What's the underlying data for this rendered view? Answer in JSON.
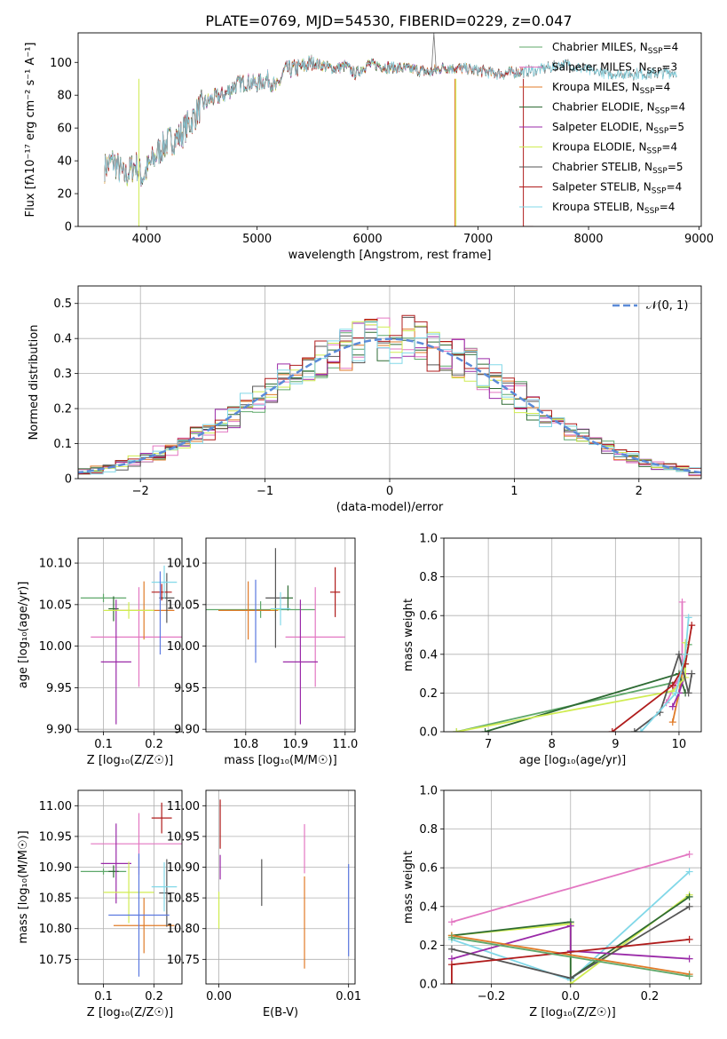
{
  "figure": {
    "title": "PLATE=0769, MJD=54530, FIBERID=0229, z=0.047"
  },
  "colors": {
    "chabrier_miles": "#5fa86a",
    "salpeter_miles": "#e377c2",
    "kroupa_miles": "#e07b28",
    "chabrier_elodie": "#2e6b34",
    "salpeter_elodie": "#9a2aa8",
    "kroupa_elodie": "#d0ec52",
    "chabrier_stelib": "#555555",
    "salpeter_stelib": "#b01c1c",
    "kroupa_stelib": "#82d8e8",
    "gaussian": "#5b8bd8",
    "blue_extra": "#5b78e0",
    "grid": "#b0b0b0"
  },
  "chart_data": [
    {
      "id": "spectrum",
      "type": "line",
      "xlabel": "wavelength [Angstrom, rest frame]",
      "ylabel": "Flux [fλ10⁻¹⁷ erg cm⁻² s⁻¹ A⁻¹]",
      "xlim": [
        3380,
        9020
      ],
      "ylim": [
        0,
        118
      ],
      "xticks": [
        4000,
        5000,
        6000,
        7000,
        8000,
        9000
      ],
      "yticks": [
        0,
        20,
        40,
        60,
        80,
        100
      ],
      "legend": [
        {
          "label": "Chabrier MILES, N",
          "sub": "SSP",
          "tail": "=4",
          "color": "chabrier_miles"
        },
        {
          "label": "Salpeter MILES, N",
          "sub": "SSP",
          "tail": "=3",
          "color": "salpeter_miles"
        },
        {
          "label": "Kroupa MILES, N",
          "sub": "SSP",
          "tail": "=4",
          "color": "kroupa_miles"
        },
        {
          "label": "Chabrier ELODIE, N",
          "sub": "SSP",
          "tail": "=4",
          "color": "chabrier_elodie"
        },
        {
          "label": "Salpeter ELODIE, N",
          "sub": "SSP",
          "tail": "=5",
          "color": "salpeter_elodie"
        },
        {
          "label": "Kroupa ELODIE, N",
          "sub": "SSP",
          "tail": "=4",
          "color": "kroupa_elodie"
        },
        {
          "label": "Chabrier STELIB, N",
          "sub": "SSP",
          "tail": "=5",
          "color": "chabrier_stelib"
        },
        {
          "label": "Salpeter STELIB, N",
          "sub": "SSP",
          "tail": "=4",
          "color": "salpeter_stelib"
        },
        {
          "label": "Kroupa STELIB, N",
          "sub": "SSP",
          "tail": "=4",
          "color": "kroupa_stelib"
        }
      ],
      "legend_position": "upper-right",
      "spectrum_anchors": [
        [
          3620,
          36
        ],
        [
          3700,
          40
        ],
        [
          3800,
          30
        ],
        [
          3900,
          38
        ],
        [
          3960,
          30
        ],
        [
          4100,
          45
        ],
        [
          4200,
          52
        ],
        [
          4300,
          55
        ],
        [
          4400,
          64
        ],
        [
          4500,
          74
        ],
        [
          4600,
          78
        ],
        [
          4700,
          80
        ],
        [
          4800,
          86
        ],
        [
          4900,
          88
        ],
        [
          5000,
          87
        ],
        [
          5100,
          90
        ],
        [
          5175,
          84
        ],
        [
          5250,
          95
        ],
        [
          5400,
          97
        ],
        [
          5500,
          100
        ],
        [
          5700,
          96
        ],
        [
          5800,
          98
        ],
        [
          5890,
          93
        ],
        [
          6000,
          99
        ],
        [
          6200,
          97
        ],
        [
          6400,
          96
        ],
        [
          6560,
          94
        ],
        [
          6700,
          97
        ],
        [
          6900,
          96
        ],
        [
          7200,
          93
        ],
        [
          7500,
          95
        ],
        [
          7800,
          99
        ],
        [
          8000,
          95
        ],
        [
          8200,
          93
        ],
        [
          8500,
          93
        ],
        [
          8800,
          94
        ]
      ],
      "dropouts": [
        {
          "color": "kroupa_elodie",
          "x": 3930,
          "x_end": 3930
        },
        {
          "color": "salpeter_stelib",
          "x": 7410,
          "x_end": 7500
        },
        {
          "color": "kroupa_elodie",
          "x": 6800,
          "x_end": 6800
        },
        {
          "color": "kroupa_miles",
          "x": 6790,
          "x_end": 6790
        }
      ],
      "spike": {
        "x": 6600,
        "y": 118
      }
    },
    {
      "id": "residuals",
      "type": "histogram",
      "xlabel": "(data-model)/error",
      "ylabel": "Normed distribution",
      "xlim": [
        -2.5,
        2.5
      ],
      "ylim": [
        0,
        0.55
      ],
      "xticks": [
        -2,
        -1,
        0,
        1,
        2
      ],
      "yticks": [
        0.0,
        0.1,
        0.2,
        0.3,
        0.4,
        0.5
      ],
      "legend": [
        {
          "label": "𝒩(0, 1)",
          "color": "gaussian",
          "style": "dashed"
        }
      ],
      "legend_position": "upper-right",
      "bin_width": 0.1
    },
    {
      "id": "age_vs_Z",
      "type": "errorbar",
      "xlabel": "Z [log₁₀(Z/Z☉)]",
      "ylabel": "age  [log₁₀(age/yr)]",
      "xlim": [
        0.05,
        0.255
      ],
      "ylim": [
        9.897,
        10.13
      ],
      "xticks": [
        0.1,
        0.2
      ],
      "yticks": [
        9.9,
        9.95,
        10.0,
        10.05,
        10.1
      ],
      "points": [
        {
          "color": "chabrier_miles",
          "x": 0.1,
          "xerr": 0.045,
          "y": 10.058,
          "yerr": 0.005
        },
        {
          "color": "salpeter_miles",
          "x": 0.17,
          "xerr": 0.095,
          "y": 10.011,
          "yerr": 0.06
        },
        {
          "color": "kroupa_miles",
          "x": 0.18,
          "xerr": 0.06,
          "y": 10.043,
          "yerr": 0.035
        },
        {
          "color": "chabrier_elodie",
          "x": 0.12,
          "xerr": 0.01,
          "y": 10.045,
          "yerr": 0.015
        },
        {
          "color": "salpeter_elodie",
          "x": 0.125,
          "xerr": 0.03,
          "y": 9.981,
          "yerr": 0.075
        },
        {
          "color": "kroupa_elodie",
          "x": 0.15,
          "xerr": 0.05,
          "y": 10.043,
          "yerr": 0.01
        },
        {
          "color": "chabrier_stelib",
          "x": 0.225,
          "xerr": 0.015,
          "y": 10.058,
          "yerr": 0.03
        },
        {
          "color": "salpeter_stelib",
          "x": 0.215,
          "xerr": 0.02,
          "y": 10.065,
          "yerr": 0.01
        },
        {
          "color": "kroupa_stelib",
          "x": 0.22,
          "xerr": 0.025,
          "y": 10.077,
          "yerr": 0.02
        },
        {
          "color": "blue_extra",
          "x": 0.212,
          "xerr": 0.0,
          "y": 10.04,
          "yerr": 0.05
        }
      ]
    },
    {
      "id": "age_vs_mass",
      "type": "errorbar",
      "xlabel": "mass [log₁₀(M/M☉)]",
      "ylabel": "",
      "xlim": [
        10.72,
        11.02
      ],
      "ylim": [
        9.897,
        10.13
      ],
      "xticks": [
        10.8,
        10.9,
        11.0
      ],
      "yticks": [
        9.9,
        9.95,
        10.0,
        10.05,
        10.1
      ],
      "points": [
        {
          "color": "chabrier_miles",
          "x": 10.83,
          "xerr": 0.11,
          "y": 10.044,
          "yerr": 0.01
        },
        {
          "color": "salpeter_miles",
          "x": 10.94,
          "xerr": 0.06,
          "y": 10.011,
          "yerr": 0.06
        },
        {
          "color": "kroupa_miles",
          "x": 10.805,
          "xerr": 0.06,
          "y": 10.043,
          "yerr": 0.035
        },
        {
          "color": "chabrier_elodie",
          "x": 10.885,
          "xerr": 0.01,
          "y": 10.058,
          "yerr": 0.015
        },
        {
          "color": "salpeter_elodie",
          "x": 10.91,
          "xerr": 0.035,
          "y": 9.981,
          "yerr": 0.075
        },
        {
          "color": "kroupa_elodie",
          "x": 10.86,
          "xerr": 0.01,
          "y": 10.044,
          "yerr": 0.01
        },
        {
          "color": "chabrier_stelib",
          "x": 10.86,
          "xerr": 0.02,
          "y": 10.058,
          "yerr": 0.06
        },
        {
          "color": "salpeter_stelib",
          "x": 10.98,
          "xerr": 0.01,
          "y": 10.065,
          "yerr": 0.03
        },
        {
          "color": "kroupa_stelib",
          "x": 10.87,
          "xerr": 0.02,
          "y": 10.045,
          "yerr": 0.02
        },
        {
          "color": "blue_extra",
          "x": 10.82,
          "xerr": 0.0,
          "y": 10.03,
          "yerr": 0.05
        }
      ]
    },
    {
      "id": "mass_weight_vs_age",
      "type": "line",
      "xlabel": "age  [log₁₀(age/yr)]",
      "ylabel": "mass weight",
      "xlim": [
        6.3,
        10.35
      ],
      "ylim": [
        0,
        1.0
      ],
      "xticks": [
        7,
        8,
        9,
        10
      ],
      "yticks": [
        0.0,
        0.2,
        0.4,
        0.6,
        0.8,
        1.0
      ],
      "series": [
        {
          "color": "chabrier_miles",
          "x": [
            6.5,
            10.0,
            10.1,
            10.15
          ],
          "y": [
            0.0,
            0.26,
            0.35,
            0.45
          ]
        },
        {
          "color": "salpeter_miles",
          "x": [
            9.8,
            9.95,
            10.05,
            10.05
          ],
          "y": [
            0.15,
            0.25,
            0.3,
            0.67
          ]
        },
        {
          "color": "kroupa_miles",
          "x": [
            9.9,
            10.0,
            10.1
          ],
          "y": [
            0.05,
            0.2,
            0.4
          ]
        },
        {
          "color": "chabrier_elodie",
          "x": [
            6.95,
            10.0,
            10.1
          ],
          "y": [
            0.0,
            0.3,
            0.2
          ]
        },
        {
          "color": "salpeter_elodie",
          "x": [
            9.9,
            10.0,
            10.1
          ],
          "y": [
            0.13,
            0.2,
            0.3
          ]
        },
        {
          "color": "kroupa_elodie",
          "x": [
            6.5,
            9.9,
            10.1,
            10.1
          ],
          "y": [
            0.0,
            0.21,
            0.28,
            0.46
          ]
        },
        {
          "color": "chabrier_stelib",
          "x": [
            9.3,
            9.7,
            10.0,
            10.15,
            10.2
          ],
          "y": [
            0.0,
            0.1,
            0.4,
            0.2,
            0.3
          ]
        },
        {
          "color": "salpeter_stelib",
          "x": [
            8.95,
            9.9,
            10.1,
            10.2
          ],
          "y": [
            0.0,
            0.24,
            0.35,
            0.55
          ]
        },
        {
          "color": "kroupa_stelib",
          "x": [
            9.4,
            9.95,
            10.1,
            10.15
          ],
          "y": [
            0.0,
            0.2,
            0.4,
            0.59
          ]
        }
      ]
    },
    {
      "id": "mass_vs_Z",
      "type": "errorbar",
      "xlabel": "Z [log₁₀(Z/Z☉)]",
      "ylabel": "mass [log₁₀(M/M☉)]",
      "xlim": [
        0.05,
        0.255
      ],
      "ylim": [
        10.71,
        11.025
      ],
      "xticks": [
        0.1,
        0.2
      ],
      "yticks": [
        10.75,
        10.8,
        10.85,
        10.9,
        10.95,
        11.0
      ],
      "points": [
        {
          "color": "chabrier_miles",
          "x": 0.1,
          "xerr": 0.045,
          "y": 10.893,
          "yerr": 0.005
        },
        {
          "color": "salpeter_miles",
          "x": 0.17,
          "xerr": 0.095,
          "y": 10.938,
          "yerr": 0.05
        },
        {
          "color": "kroupa_miles",
          "x": 0.18,
          "xerr": 0.06,
          "y": 10.805,
          "yerr": 0.045
        },
        {
          "color": "chabrier_elodie",
          "x": 0.12,
          "xerr": 0.01,
          "y": 10.893,
          "yerr": 0.01
        },
        {
          "color": "salpeter_elodie",
          "x": 0.125,
          "xerr": 0.03,
          "y": 10.906,
          "yerr": 0.065
        },
        {
          "color": "kroupa_elodie",
          "x": 0.15,
          "xerr": 0.05,
          "y": 10.859,
          "yerr": 0.05
        },
        {
          "color": "chabrier_stelib",
          "x": 0.225,
          "xerr": 0.015,
          "y": 10.858,
          "yerr": 0.055
        },
        {
          "color": "salpeter_stelib",
          "x": 0.215,
          "xerr": 0.02,
          "y": 10.98,
          "yerr": 0.025
        },
        {
          "color": "kroupa_stelib",
          "x": 0.22,
          "xerr": 0.025,
          "y": 10.868,
          "yerr": 0.04
        },
        {
          "color": "blue_extra",
          "x": 0.17,
          "xerr": 0.06,
          "y": 10.822,
          "yerr": 0.1
        }
      ]
    },
    {
      "id": "mass_vs_ebv",
      "type": "errorbar",
      "xlabel": "E(B-V)",
      "ylabel": "",
      "xlim": [
        -0.001,
        0.0105
      ],
      "ylim": [
        10.71,
        11.025
      ],
      "xticks": [
        0.0,
        0.01
      ],
      "yticks": [
        10.75,
        10.8,
        10.85,
        10.9,
        10.95,
        11.0
      ],
      "points": [
        {
          "color": "salpeter_stelib",
          "x": 0.0001,
          "xerr": 0.0,
          "y": 10.97,
          "yerr": 0.04
        },
        {
          "color": "salpeter_elodie",
          "x": 0.0001,
          "xerr": 0.0,
          "y": 10.9,
          "yerr": 0.02
        },
        {
          "color": "kroupa_elodie",
          "x": 0.0,
          "xerr": 0.0,
          "y": 10.83,
          "yerr": 0.03
        },
        {
          "color": "chabrier_stelib",
          "x": 0.0033,
          "xerr": 0.0,
          "y": 10.875,
          "yerr": 0.038
        },
        {
          "color": "salpeter_miles",
          "x": 0.0066,
          "xerr": 0.0,
          "y": 10.93,
          "yerr": 0.04
        },
        {
          "color": "kroupa_miles",
          "x": 0.0066,
          "xerr": 0.0,
          "y": 10.81,
          "yerr": 0.075
        },
        {
          "color": "blue_extra",
          "x": 0.01,
          "xerr": 0.0,
          "y": 10.83,
          "yerr": 0.075
        }
      ]
    },
    {
      "id": "mass_weight_vs_Z",
      "type": "line",
      "xlabel": "Z [log₁₀(Z/Z☉)]",
      "ylabel": "mass weight",
      "xlim": [
        -0.32,
        0.33
      ],
      "ylim": [
        0,
        1.0
      ],
      "xticks": [
        -0.2,
        0.0,
        0.2
      ],
      "yticks": [
        0.0,
        0.2,
        0.4,
        0.6,
        0.8,
        1.0
      ],
      "series": [
        {
          "color": "salpeter_miles",
          "x": [
            -0.3,
            0.3
          ],
          "y": [
            0.32,
            0.67
          ]
        },
        {
          "color": "kroupa_stelib",
          "x": [
            -0.3,
            0.0,
            0.3
          ],
          "y": [
            0.23,
            0.02,
            0.58
          ]
        },
        {
          "color": "kroupa_elodie",
          "x": [
            -0.3,
            0.0,
            0.0,
            0.3
          ],
          "y": [
            0.25,
            0.31,
            0.0,
            0.46
          ]
        },
        {
          "color": "chabrier_elodie",
          "x": [
            -0.3,
            0.0,
            0.0,
            0.3
          ],
          "y": [
            0.25,
            0.32,
            0.03,
            0.45
          ]
        },
        {
          "color": "salpeter_elodie",
          "x": [
            -0.3,
            0.0,
            0.0,
            0.3
          ],
          "y": [
            0.13,
            0.3,
            0.17,
            0.13
          ]
        },
        {
          "color": "chabrier_stelib",
          "x": [
            -0.3,
            0.0,
            0.3
          ],
          "y": [
            0.18,
            0.03,
            0.4
          ]
        },
        {
          "color": "kroupa_miles",
          "x": [
            -0.3,
            0.3
          ],
          "y": [
            0.25,
            0.05
          ]
        },
        {
          "color": "salpeter_stelib",
          "x": [
            -0.3,
            -0.3,
            0.3
          ],
          "y": [
            0.0,
            0.1,
            0.23
          ]
        },
        {
          "color": "chabrier_miles",
          "x": [
            -0.3,
            0.3
          ],
          "y": [
            0.24,
            0.04
          ]
        }
      ]
    }
  ]
}
